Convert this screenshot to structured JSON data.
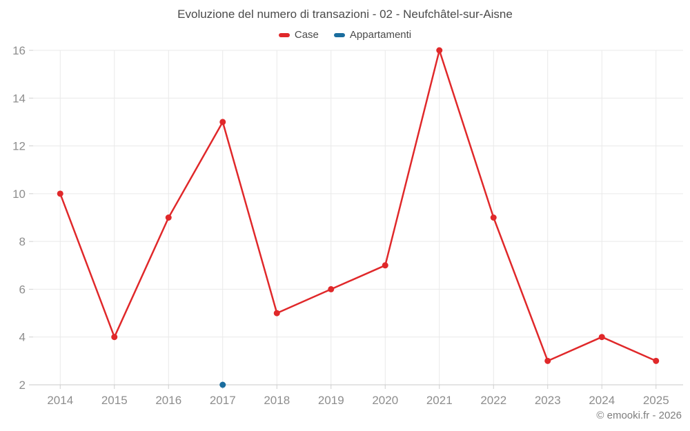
{
  "chart_data": {
    "type": "line",
    "title": "Evoluzione del numero di transazioni - 02 - Neufchâtel-sur-Aisne",
    "categories": [
      "2014",
      "2015",
      "2016",
      "2017",
      "2018",
      "2019",
      "2020",
      "2021",
      "2022",
      "2023",
      "2024",
      "2025"
    ],
    "series": [
      {
        "name": "Case",
        "color": "#e0282a",
        "values": [
          10,
          4,
          9,
          13,
          5,
          6,
          7,
          16,
          9,
          3,
          4,
          3
        ]
      },
      {
        "name": "Appartamenti",
        "color": "#1a6d9e",
        "values": [
          null,
          null,
          null,
          2,
          null,
          null,
          null,
          null,
          null,
          null,
          null,
          null
        ]
      }
    ],
    "ylim": [
      2,
      16
    ],
    "yticks": [
      2,
      4,
      6,
      8,
      10,
      12,
      14,
      16
    ],
    "grid": true,
    "legend_position": "top"
  },
  "footer": {
    "credit": "© emooki.fr - 2026"
  }
}
